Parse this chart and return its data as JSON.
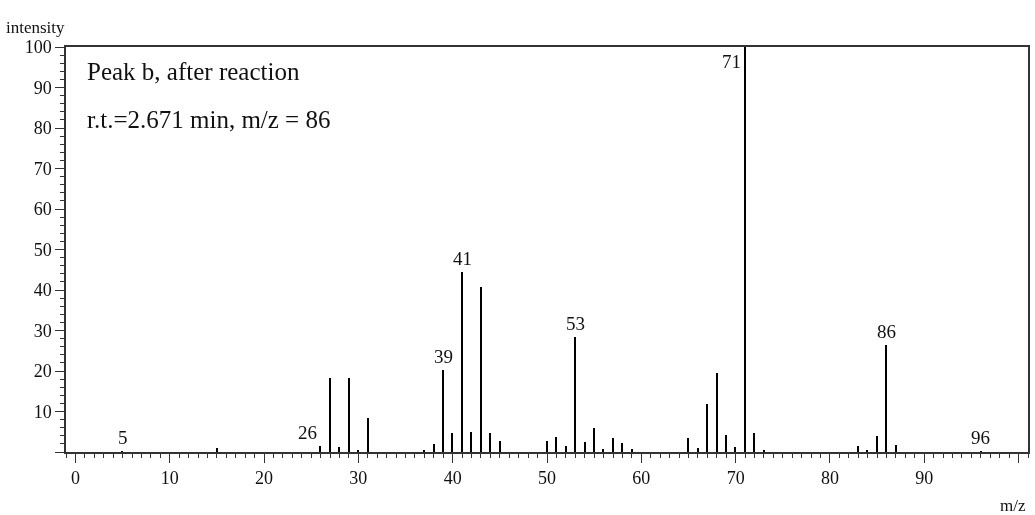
{
  "chart_data": {
    "type": "bar",
    "xlabel": "m/z",
    "ylabel": "intensity",
    "x": [
      5,
      15,
      26,
      27,
      28,
      29,
      30,
      31,
      37,
      38,
      39,
      40,
      41,
      42,
      43,
      44,
      45,
      50,
      51,
      52,
      53,
      54,
      55,
      56,
      57,
      58,
      59,
      65,
      66,
      67,
      68,
      69,
      70,
      71,
      72,
      73,
      83,
      84,
      85,
      86,
      87,
      96
    ],
    "values": [
      0.2,
      1,
      1.5,
      18.3,
      1.2,
      18.3,
      0.5,
      8.3,
      0.5,
      2,
      20.2,
      4.7,
      44.4,
      4.9,
      40.7,
      4.7,
      2.7,
      2.7,
      3.7,
      1.5,
      28.4,
      2.5,
      5.9,
      0.7,
      3.5,
      2.2,
      0.7,
      3.5,
      1,
      11.8,
      19.5,
      4.2,
      1.2,
      100,
      4.7,
      0.3,
      1.5,
      0.5,
      3.9,
      26.4,
      1.7,
      0.2
    ],
    "color": "#000000",
    "xlim": [
      -1,
      101
    ],
    "ylim": [
      0,
      100
    ],
    "xticks": [
      0,
      10,
      20,
      30,
      40,
      50,
      60,
      70,
      80,
      90,
      {
        "value": 100,
        "label": null
      }
    ],
    "yticks": [
      {
        "value": 0,
        "label": null
      },
      10,
      20,
      30,
      40,
      50,
      60,
      70,
      80,
      90,
      100
    ],
    "annotations": [
      "Peak b, after reaction",
      "r.t.=2.671 min, m/z = 86",
      {
        "text": "5",
        "x": 5,
        "y": 0.2
      },
      {
        "text": "26",
        "x": 26,
        "y": 1.5
      },
      {
        "text": "39",
        "x": 39,
        "y": 20.2
      },
      {
        "text": "41",
        "x": 41,
        "y": 44.4
      },
      {
        "text": "53",
        "x": 53,
        "y": 28.4
      },
      {
        "text": "71",
        "x": 71,
        "y": 93
      },
      {
        "text": "86",
        "x": 86,
        "y": 26.4
      },
      {
        "text": "96",
        "x": 96,
        "y": 0.2
      }
    ]
  }
}
